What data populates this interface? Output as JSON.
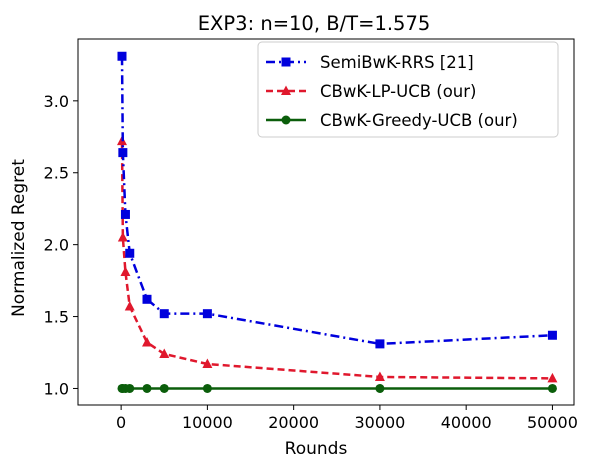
{
  "chart_data": {
    "type": "line",
    "title": "EXP3: n=10, B/T=1.575",
    "xlabel": "Rounds",
    "ylabel": "Normalized Regret",
    "xlim": [
      -5000,
      52500
    ],
    "ylim": [
      0.885,
      3.43
    ],
    "xticks": [
      0,
      10000,
      20000,
      30000,
      40000,
      50000
    ],
    "xtick_labels": [
      "0",
      "10000",
      "20000",
      "30000",
      "40000",
      "50000"
    ],
    "yticks": [
      1.0,
      1.5,
      2.0,
      2.5,
      3.0
    ],
    "ytick_labels": [
      "1.0",
      "1.5",
      "2.0",
      "2.5",
      "3.0"
    ],
    "grid": false,
    "legend_position": "top-right",
    "x": [
      100,
      200,
      500,
      1000,
      3000,
      5000,
      10000,
      30000,
      50000
    ],
    "series": [
      {
        "name": "SemiBwK-RRS [21]",
        "values": [
          3.31,
          2.64,
          2.21,
          1.94,
          1.62,
          1.52,
          1.52,
          1.31,
          1.37
        ],
        "color": "#0000dd",
        "line_style": "dashdot",
        "marker": "square"
      },
      {
        "name": "CBwK-LP-UCB (our)",
        "values": [
          2.72,
          2.05,
          1.81,
          1.57,
          1.32,
          1.24,
          1.17,
          1.08,
          1.07
        ],
        "color": "#e0182d",
        "line_style": "dashed",
        "marker": "triangle"
      },
      {
        "name": "CBwK-Greedy-UCB (our)",
        "values": [
          1.0,
          1.0,
          1.0,
          1.0,
          1.0,
          1.0,
          1.0,
          1.0,
          1.0
        ],
        "color": "#0b5e0b",
        "line_style": "solid",
        "marker": "circle"
      }
    ]
  }
}
